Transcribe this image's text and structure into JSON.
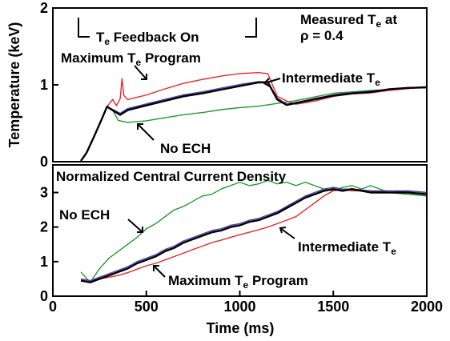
{
  "colors": {
    "max_program": "#e8282d",
    "intermediate": "#000000",
    "intermediate_2": "#4a3fb0",
    "no_ech": "#1f9a2f"
  },
  "chart_data": [
    {
      "type": "line",
      "ylabel": "Temperature (keV)",
      "ylim": [
        0,
        2
      ],
      "xlim": [
        0,
        2000
      ],
      "y_ticks": [
        "0",
        "1",
        "2"
      ],
      "annotations": {
        "feedback": {
          "pre": "T",
          "sub": "e",
          "post": " Feedback On"
        },
        "measured_line1": {
          "pre": "Measured T",
          "sub": "e",
          "post": " at"
        },
        "measured_line2": "ρ = 0.4",
        "max_program": {
          "pre": "Maximum T",
          "sub": "e",
          "post": " Program"
        },
        "intermediate": {
          "pre": "Intermediate T",
          "sub": "e"
        },
        "no_ech": "No ECH"
      },
      "series": [
        {
          "key": "no_ech",
          "values": [
            [
              150,
              0
            ],
            [
              180,
              0.12
            ],
            [
              220,
              0.32
            ],
            [
              260,
              0.55
            ],
            [
              290,
              0.72
            ],
            [
              320,
              0.66
            ],
            [
              350,
              0.55
            ],
            [
              400,
              0.5
            ],
            [
              500,
              0.52
            ],
            [
              600,
              0.56
            ],
            [
              700,
              0.6
            ],
            [
              800,
              0.63
            ],
            [
              900,
              0.67
            ],
            [
              1000,
              0.7
            ],
            [
              1100,
              0.72
            ],
            [
              1200,
              0.76
            ],
            [
              1300,
              0.8
            ],
            [
              1400,
              0.85
            ],
            [
              1500,
              0.9
            ],
            [
              1600,
              0.92
            ],
            [
              1700,
              0.94
            ],
            [
              1800,
              0.95
            ],
            [
              1900,
              0.97
            ],
            [
              2000,
              0.98
            ]
          ]
        },
        {
          "key": "intermediate",
          "values": [
            [
              150,
              0
            ],
            [
              180,
              0.12
            ],
            [
              220,
              0.32
            ],
            [
              260,
              0.55
            ],
            [
              290,
              0.72
            ],
            [
              320,
              0.66
            ],
            [
              360,
              0.62
            ],
            [
              400,
              0.66
            ],
            [
              500,
              0.72
            ],
            [
              600,
              0.78
            ],
            [
              700,
              0.84
            ],
            [
              800,
              0.88
            ],
            [
              900,
              0.93
            ],
            [
              1000,
              0.98
            ],
            [
              1100,
              1.03
            ],
            [
              1150,
              1.04
            ],
            [
              1200,
              0.8
            ],
            [
              1250,
              0.75
            ],
            [
              1300,
              0.75
            ],
            [
              1400,
              0.8
            ],
            [
              1500,
              0.85
            ],
            [
              1600,
              0.88
            ],
            [
              1700,
              0.9
            ],
            [
              1800,
              0.94
            ],
            [
              1900,
              0.96
            ],
            [
              2000,
              0.97
            ]
          ]
        },
        {
          "key": "intermediate_2",
          "values": [
            [
              150,
              0
            ],
            [
              180,
              0.12
            ],
            [
              220,
              0.32
            ],
            [
              260,
              0.55
            ],
            [
              290,
              0.72
            ],
            [
              320,
              0.67
            ],
            [
              360,
              0.64
            ],
            [
              400,
              0.68
            ],
            [
              500,
              0.74
            ],
            [
              600,
              0.8
            ],
            [
              700,
              0.86
            ],
            [
              800,
              0.9
            ],
            [
              900,
              0.95
            ],
            [
              1000,
              1.0
            ],
            [
              1100,
              1.04
            ],
            [
              1150,
              1.04
            ],
            [
              1200,
              0.82
            ],
            [
              1250,
              0.76
            ],
            [
              1300,
              0.76
            ],
            [
              1400,
              0.81
            ],
            [
              1500,
              0.86
            ],
            [
              1600,
              0.89
            ],
            [
              1700,
              0.91
            ],
            [
              1800,
              0.94
            ],
            [
              1900,
              0.96
            ],
            [
              2000,
              0.98
            ]
          ]
        },
        {
          "key": "max_program",
          "values": [
            [
              150,
              0
            ],
            [
              180,
              0.12
            ],
            [
              220,
              0.32
            ],
            [
              260,
              0.55
            ],
            [
              290,
              0.72
            ],
            [
              320,
              0.8
            ],
            [
              340,
              0.74
            ],
            [
              360,
              0.82
            ],
            [
              370,
              1.07
            ],
            [
              380,
              0.86
            ],
            [
              400,
              0.82
            ],
            [
              500,
              0.88
            ],
            [
              600,
              0.96
            ],
            [
              700,
              1.03
            ],
            [
              800,
              1.08
            ],
            [
              900,
              1.12
            ],
            [
              1000,
              1.15
            ],
            [
              1100,
              1.16
            ],
            [
              1150,
              1.14
            ],
            [
              1200,
              0.86
            ],
            [
              1250,
              0.78
            ],
            [
              1300,
              0.76
            ],
            [
              1400,
              0.8
            ],
            [
              1500,
              0.86
            ],
            [
              1600,
              0.89
            ],
            [
              1700,
              0.9
            ],
            [
              1800,
              0.93
            ],
            [
              1900,
              0.95
            ],
            [
              2000,
              0.97
            ]
          ]
        }
      ]
    },
    {
      "type": "line",
      "title": "Normalized Central Current Density",
      "xlabel": "Time (ms)",
      "ylim": [
        0,
        3.8
      ],
      "xlim": [
        0,
        2000
      ],
      "y_ticks": [
        "0",
        "1",
        "2",
        "3"
      ],
      "x_ticks": [
        "0",
        "500",
        "1000",
        "1500",
        "2000"
      ],
      "annotations": {
        "no_ech": "No ECH",
        "intermediate": {
          "pre": "Intermediate T",
          "sub": "e"
        },
        "max_program": {
          "pre": "Maximum T",
          "sub": "e",
          "post": " Program"
        }
      },
      "series": [
        {
          "key": "no_ech",
          "values": [
            [
              150,
              0.7
            ],
            [
              200,
              0.4
            ],
            [
              250,
              0.8
            ],
            [
              300,
              1.1
            ],
            [
              350,
              1.3
            ],
            [
              400,
              1.5
            ],
            [
              450,
              1.7
            ],
            [
              500,
              1.95
            ],
            [
              550,
              2.1
            ],
            [
              600,
              2.3
            ],
            [
              650,
              2.5
            ],
            [
              700,
              2.6
            ],
            [
              750,
              2.75
            ],
            [
              800,
              2.9
            ],
            [
              850,
              2.95
            ],
            [
              900,
              3.1
            ],
            [
              950,
              3.2
            ],
            [
              1000,
              3.3
            ],
            [
              1050,
              3.2
            ],
            [
              1100,
              3.25
            ],
            [
              1150,
              3.35
            ],
            [
              1200,
              3.25
            ],
            [
              1250,
              3.3
            ],
            [
              1300,
              3.2
            ],
            [
              1350,
              3.3
            ],
            [
              1400,
              3.2
            ],
            [
              1450,
              3.1
            ],
            [
              1500,
              3.05
            ],
            [
              1550,
              3.15
            ],
            [
              1600,
              3.2
            ],
            [
              1650,
              3.1
            ],
            [
              1700,
              3.2
            ],
            [
              1800,
              3.0
            ],
            [
              1900,
              2.95
            ],
            [
              2000,
              2.9
            ]
          ]
        },
        {
          "key": "intermediate",
          "values": [
            [
              150,
              0.45
            ],
            [
              200,
              0.4
            ],
            [
              250,
              0.5
            ],
            [
              300,
              0.6
            ],
            [
              350,
              0.7
            ],
            [
              400,
              0.8
            ],
            [
              450,
              0.95
            ],
            [
              500,
              1.05
            ],
            [
              550,
              1.15
            ],
            [
              600,
              1.3
            ],
            [
              650,
              1.4
            ],
            [
              700,
              1.55
            ],
            [
              750,
              1.65
            ],
            [
              800,
              1.75
            ],
            [
              850,
              1.85
            ],
            [
              900,
              1.9
            ],
            [
              950,
              2.0
            ],
            [
              1000,
              2.05
            ],
            [
              1050,
              2.15
            ],
            [
              1100,
              2.2
            ],
            [
              1150,
              2.3
            ],
            [
              1200,
              2.4
            ],
            [
              1250,
              2.55
            ],
            [
              1300,
              2.7
            ],
            [
              1350,
              2.85
            ],
            [
              1400,
              2.95
            ],
            [
              1450,
              3.05
            ],
            [
              1500,
              3.1
            ],
            [
              1550,
              3.05
            ],
            [
              1600,
              3.1
            ],
            [
              1700,
              3.0
            ],
            [
              1800,
              3.0
            ],
            [
              1900,
              3.0
            ],
            [
              2000,
              2.95
            ]
          ]
        },
        {
          "key": "intermediate_2",
          "values": [
            [
              150,
              0.5
            ],
            [
              200,
              0.45
            ],
            [
              250,
              0.55
            ],
            [
              300,
              0.65
            ],
            [
              350,
              0.75
            ],
            [
              400,
              0.85
            ],
            [
              450,
              1.0
            ],
            [
              500,
              1.1
            ],
            [
              550,
              1.2
            ],
            [
              600,
              1.35
            ],
            [
              650,
              1.45
            ],
            [
              700,
              1.6
            ],
            [
              750,
              1.7
            ],
            [
              800,
              1.8
            ],
            [
              850,
              1.9
            ],
            [
              900,
              1.95
            ],
            [
              950,
              2.05
            ],
            [
              1000,
              2.1
            ],
            [
              1050,
              2.2
            ],
            [
              1100,
              2.25
            ],
            [
              1150,
              2.35
            ],
            [
              1200,
              2.45
            ],
            [
              1250,
              2.6
            ],
            [
              1300,
              2.75
            ],
            [
              1350,
              2.9
            ],
            [
              1400,
              3.0
            ],
            [
              1450,
              3.1
            ],
            [
              1500,
              3.15
            ],
            [
              1550,
              3.1
            ],
            [
              1600,
              3.1
            ],
            [
              1700,
              3.05
            ],
            [
              1800,
              3.05
            ],
            [
              1900,
              3.05
            ],
            [
              2000,
              3.0
            ]
          ]
        },
        {
          "key": "max_program",
          "values": [
            [
              150,
              0.5
            ],
            [
              200,
              0.45
            ],
            [
              250,
              0.5
            ],
            [
              300,
              0.55
            ],
            [
              350,
              0.6
            ],
            [
              400,
              0.68
            ],
            [
              450,
              0.78
            ],
            [
              500,
              0.88
            ],
            [
              550,
              0.95
            ],
            [
              600,
              1.05
            ],
            [
              650,
              1.15
            ],
            [
              700,
              1.25
            ],
            [
              750,
              1.35
            ],
            [
              800,
              1.45
            ],
            [
              850,
              1.55
            ],
            [
              900,
              1.62
            ],
            [
              950,
              1.7
            ],
            [
              1000,
              1.78
            ],
            [
              1050,
              1.85
            ],
            [
              1100,
              1.92
            ],
            [
              1150,
              2.0
            ],
            [
              1200,
              2.1
            ],
            [
              1250,
              2.2
            ],
            [
              1300,
              2.3
            ],
            [
              1350,
              2.5
            ],
            [
              1400,
              2.7
            ],
            [
              1450,
              2.9
            ],
            [
              1500,
              3.05
            ],
            [
              1550,
              3.1
            ],
            [
              1600,
              3.05
            ],
            [
              1700,
              3.05
            ],
            [
              1800,
              3.0
            ],
            [
              1900,
              3.05
            ],
            [
              2000,
              3.0
            ]
          ]
        }
      ]
    }
  ]
}
